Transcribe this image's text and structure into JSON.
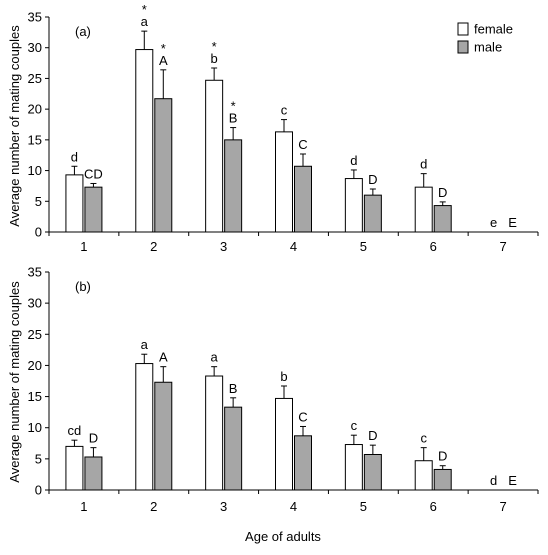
{
  "chart_data": [
    {
      "type": "bar",
      "panel_label": "(a)",
      "categories": [
        "1",
        "2",
        "3",
        "4",
        "5",
        "6",
        "7"
      ],
      "ylim": [
        0,
        35
      ],
      "yticks": [
        0,
        5,
        10,
        15,
        20,
        25,
        30,
        35
      ],
      "grid": false,
      "legend_placement": "top-right",
      "series": [
        {
          "name": "female",
          "color": "#ffffff",
          "values": [
            9.3,
            29.7,
            24.7,
            16.3,
            8.7,
            7.3,
            0
          ],
          "errors": [
            1.4,
            3.0,
            2.0,
            2.0,
            1.4,
            2.2,
            0
          ],
          "letters": [
            "d",
            "a",
            "b",
            "c",
            "d",
            "d",
            "e"
          ],
          "stars": [
            "",
            "*",
            "*",
            "",
            "",
            "",
            ""
          ]
        },
        {
          "name": "male",
          "color": "#a6a6a6",
          "values": [
            7.3,
            21.7,
            15.0,
            10.7,
            6.0,
            4.3,
            0
          ],
          "errors": [
            0.6,
            4.7,
            2.0,
            2.0,
            1.0,
            0.6,
            0
          ],
          "letters": [
            "CD",
            "A",
            "B",
            "C",
            "D",
            "D",
            "E"
          ],
          "stars": [
            "",
            "*",
            "*",
            "",
            "",
            "",
            ""
          ]
        }
      ]
    },
    {
      "type": "bar",
      "panel_label": "(b)",
      "categories": [
        "1",
        "2",
        "3",
        "4",
        "5",
        "6",
        "7"
      ],
      "ylim": [
        0,
        35
      ],
      "yticks": [
        0,
        5,
        10,
        15,
        20,
        25,
        30,
        35
      ],
      "grid": false,
      "series": [
        {
          "name": "female",
          "color": "#ffffff",
          "values": [
            7.0,
            20.3,
            18.3,
            14.7,
            7.3,
            4.7,
            0
          ],
          "errors": [
            1.0,
            1.5,
            1.5,
            2.0,
            1.5,
            2.1,
            0
          ],
          "letters": [
            "cd",
            "a",
            "a",
            "b",
            "c",
            "c",
            "d"
          ]
        },
        {
          "name": "male",
          "color": "#a6a6a6",
          "values": [
            5.3,
            17.3,
            13.3,
            8.7,
            5.7,
            3.3,
            0
          ],
          "errors": [
            1.5,
            2.5,
            1.5,
            1.5,
            1.5,
            0.6,
            0
          ],
          "letters": [
            "D",
            "A",
            "B",
            "C",
            "D",
            "D",
            "E"
          ]
        }
      ]
    }
  ],
  "figure": {
    "ylabel": "Average number of mating couples",
    "xlabel": "Age of adults"
  }
}
